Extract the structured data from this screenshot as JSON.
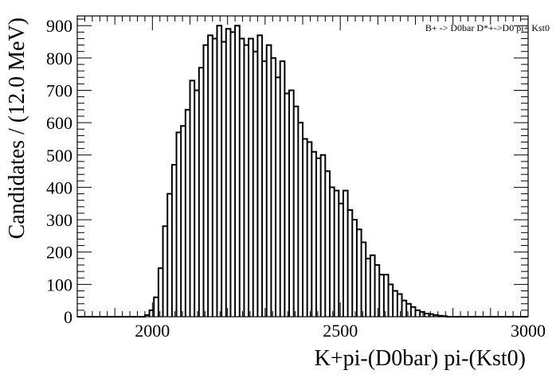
{
  "chart_data": {
    "type": "histogram",
    "title": "B+ -> D0bar D*+->D0 pi+ Kst0",
    "xlabel": "K+pi-(D0bar)  pi-(Kst0)",
    "ylabel": "Candidates / (12.0 MeV)",
    "xlim": [
      1800,
      3000
    ],
    "ylim": [
      0,
      930
    ],
    "bin_width": 12,
    "x_ticks": [
      2000,
      2500,
      3000
    ],
    "y_ticks": [
      0,
      100,
      200,
      300,
      400,
      500,
      600,
      700,
      800,
      900
    ],
    "grid": false,
    "legend_position": "top-right",
    "bins_start": [
      1980,
      1992,
      2004,
      2016,
      2028,
      2040,
      2052,
      2064,
      2076,
      2088,
      2100,
      2112,
      2124,
      2136,
      2148,
      2160,
      2172,
      2184,
      2196,
      2208,
      2220,
      2232,
      2244,
      2256,
      2268,
      2280,
      2292,
      2304,
      2316,
      2328,
      2340,
      2352,
      2364,
      2376,
      2388,
      2400,
      2412,
      2424,
      2436,
      2448,
      2460,
      2472,
      2484,
      2496,
      2508,
      2520,
      2532,
      2544,
      2556,
      2568,
      2580,
      2592,
      2604,
      2616,
      2628,
      2640,
      2652,
      2664,
      2676,
      2688,
      2700,
      2712,
      2724,
      2736,
      2748,
      2760,
      2772
    ],
    "counts": [
      5,
      20,
      60,
      150,
      280,
      380,
      470,
      570,
      590,
      640,
      730,
      700,
      770,
      840,
      870,
      860,
      900,
      850,
      890,
      880,
      900,
      860,
      840,
      860,
      820,
      870,
      790,
      840,
      800,
      740,
      790,
      690,
      700,
      650,
      600,
      550,
      540,
      510,
      490,
      500,
      450,
      400,
      390,
      350,
      390,
      330,
      300,
      270,
      230,
      180,
      190,
      160,
      130,
      130,
      100,
      80,
      70,
      50,
      40,
      30,
      20,
      15,
      10,
      8,
      5,
      3,
      2
    ]
  }
}
